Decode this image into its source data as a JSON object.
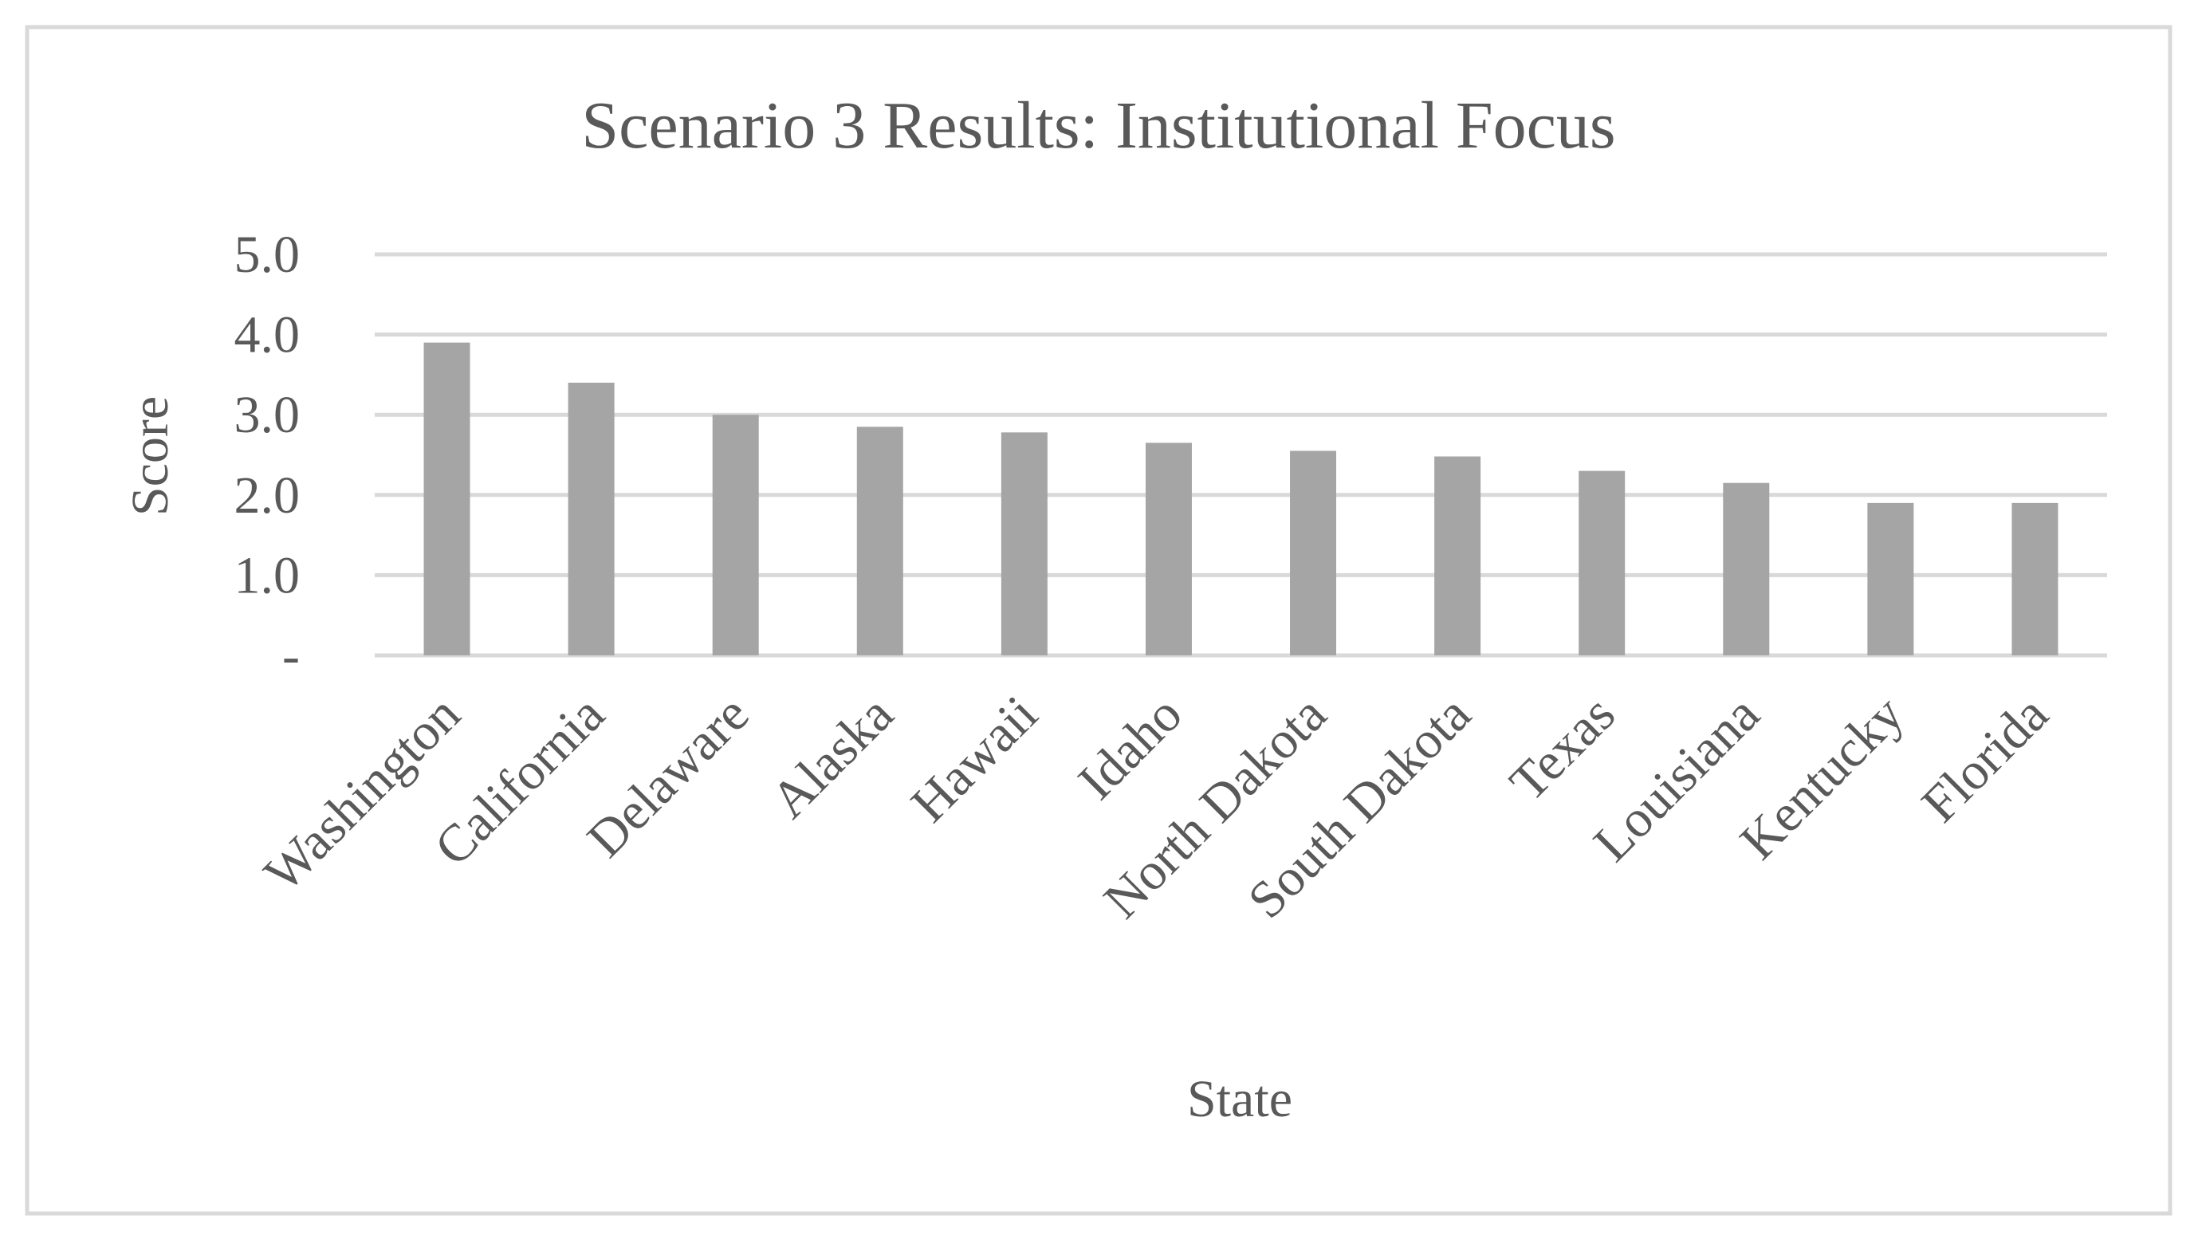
{
  "chart_data": {
    "type": "bar",
    "title": "Scenario 3 Results: Institutional Focus",
    "xlabel": "State",
    "ylabel": "Score",
    "categories": [
      "Washington",
      "California",
      "Delaware",
      "Alaska",
      "Hawaii",
      "Idaho",
      "North Dakota",
      "South Dakota",
      "Texas",
      "Louisiana",
      "Kentucky",
      "Florida"
    ],
    "values": [
      3.9,
      3.4,
      3.0,
      2.85,
      2.78,
      2.65,
      2.55,
      2.48,
      2.3,
      2.15,
      1.9,
      1.9
    ],
    "ylim": [
      0,
      5
    ],
    "yticks": [
      0,
      1,
      2,
      3,
      4,
      5
    ],
    "ytick_labels": [
      "-",
      "1.0",
      "2.0",
      "3.0",
      "4.0",
      "5.0"
    ],
    "grid": true,
    "legend": "none",
    "bar_color": "#a5a5a5",
    "grid_color": "#d9d9d9",
    "text_color": "#595959",
    "border_color": "#d9d9d9"
  }
}
